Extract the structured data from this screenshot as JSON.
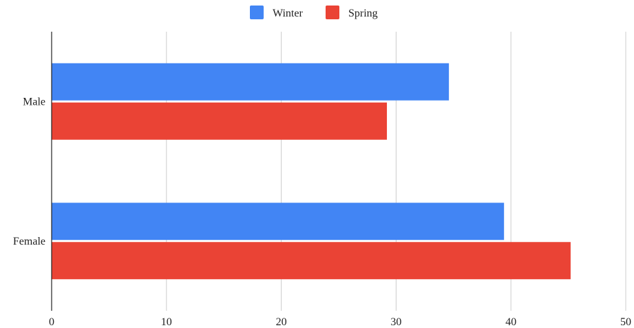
{
  "chart_data": {
    "type": "bar",
    "orientation": "horizontal",
    "categories": [
      "Male",
      "Female"
    ],
    "series": [
      {
        "name": "Winter",
        "color": "#4285f4",
        "values": [
          34.6,
          39.4
        ]
      },
      {
        "name": "Spring",
        "color": "#ea4335",
        "values": [
          29.2,
          45.2
        ]
      }
    ],
    "xlim": [
      0,
      50
    ],
    "xticks": [
      "0",
      "10",
      "20",
      "30",
      "40",
      "50"
    ],
    "grid": true,
    "legend_position": "top"
  }
}
